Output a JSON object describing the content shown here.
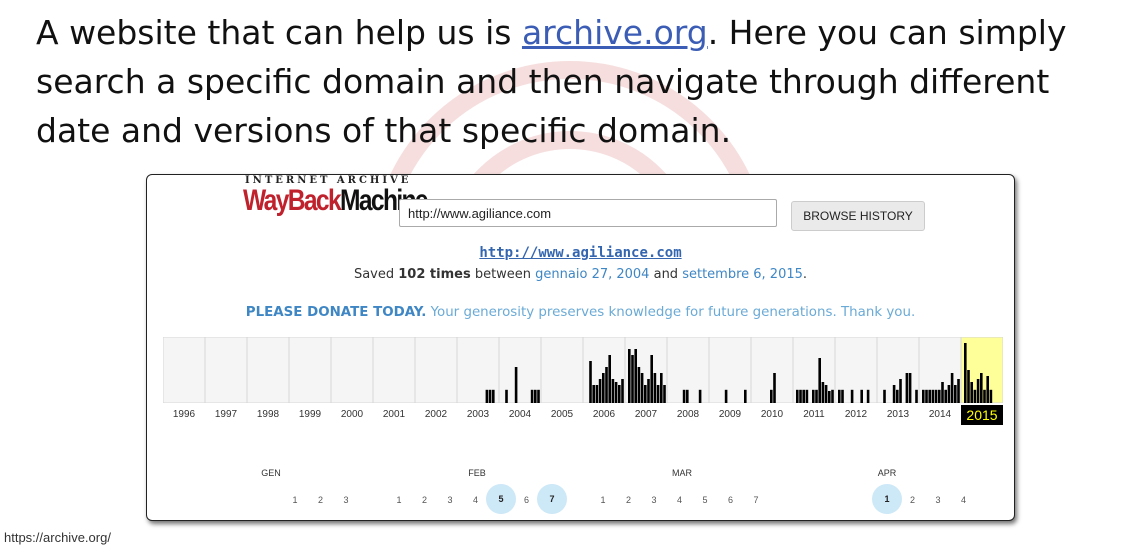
{
  "intro": {
    "before": "A website that can help us is ",
    "link": "archive.org",
    "after": ". Here you can simply search a specific domain and then navigate through different date and versions of that specific domain."
  },
  "logo": {
    "top": "INTERNET ARCHIVE",
    "wayback": "WayBack",
    "machine": "Machine"
  },
  "search": {
    "value": "http://www.agiliance.com",
    "button": "BROWSE HISTORY"
  },
  "site_url": "http://www.agiliance.com",
  "saved": {
    "prefix": "Saved ",
    "count": "102 times",
    "middle": " between ",
    "first": "gennaio 27, 2004",
    "and": " and ",
    "last": "settembre 6, 2015",
    "suffix": "."
  },
  "donate": {
    "bold": "PLEASE DONATE TODAY.",
    "text": " Your generosity preserves knowledge for future generations. Thank you."
  },
  "colors": {
    "accent": "#3e86c4",
    "selected_year_bg": "#ffff99",
    "highlight_day": "#cde8f7",
    "logo_red": "#c0222d"
  },
  "chart_data": {
    "type": "bar",
    "years": [
      "1996",
      "1997",
      "1998",
      "1999",
      "2000",
      "2001",
      "2002",
      "2003",
      "2004",
      "2005",
      "2006",
      "2007",
      "2008",
      "2009",
      "2010",
      "2011",
      "2012",
      "2013",
      "2014",
      "2015"
    ],
    "selected_year": "2015",
    "series": [
      {
        "values": [
          [],
          [],
          [],
          [],
          [],
          [],
          [],
          [
            0,
            0,
            0,
            0,
            0,
            0,
            0,
            0,
            0.22,
            0.22,
            0.22,
            0
          ],
          [
            0,
            0.22,
            0,
            0,
            0.6,
            0,
            0,
            0,
            0,
            0.22,
            0.22,
            0.22
          ],
          [],
          [
            0,
            0.7,
            0.3,
            0.3,
            0.4,
            0.5,
            0.6,
            0.8,
            0.4,
            0.35,
            0.3,
            0.4
          ],
          [
            0.9,
            0.8,
            0.9,
            0.6,
            0.5,
            0.3,
            0.4,
            0.8,
            0.5,
            0.3,
            0.5,
            0.3
          ],
          [
            0,
            0,
            0,
            0,
            0.22,
            0.22,
            0,
            0,
            0,
            0.22,
            0,
            0
          ],
          [
            0,
            0,
            0,
            0,
            0.22,
            0,
            0,
            0,
            0,
            0,
            0.22,
            0
          ],
          [
            0,
            0,
            0,
            0,
            0,
            0.22,
            0.5,
            0,
            0,
            0,
            0,
            0
          ],
          [
            0.22,
            0.22,
            0.22,
            0.22,
            0,
            0.22,
            0.22,
            0.75,
            0.35,
            0.3,
            0.2,
            0.22
          ],
          [
            0.22,
            0.22,
            0,
            0,
            0.22,
            0,
            0,
            0.22,
            0,
            0.22,
            0,
            0
          ],
          [
            0,
            0.22,
            0,
            0,
            0.3,
            0.22,
            0.4,
            0,
            0.5,
            0.5,
            0,
            0.22
          ],
          [
            0.22,
            0.22,
            0.22,
            0.22,
            0.22,
            0.22,
            0.35,
            0.22,
            0.3,
            0.5,
            0.3,
            0.4
          ],
          [
            1.0,
            0.55,
            0.35,
            0.22,
            0.4,
            0.5,
            0.22,
            0.45,
            0.22,
            0,
            0,
            0
          ]
        ]
      }
    ]
  },
  "calendar": {
    "months": [
      {
        "label": "GEN",
        "days": [
          "1",
          "2",
          "3"
        ],
        "highlighted": []
      },
      {
        "label": "FEB",
        "days": [
          "1",
          "2",
          "3",
          "4",
          "5",
          "6",
          "7"
        ],
        "highlighted": [
          "5",
          "7"
        ]
      },
      {
        "label": "MAR",
        "days": [
          "1",
          "2",
          "3",
          "4",
          "5",
          "6",
          "7"
        ],
        "highlighted": []
      },
      {
        "label": "APR",
        "days": [
          "1",
          "2",
          "3",
          "4"
        ],
        "highlighted": [
          "1"
        ]
      }
    ]
  },
  "credit": "https://archive.org/"
}
